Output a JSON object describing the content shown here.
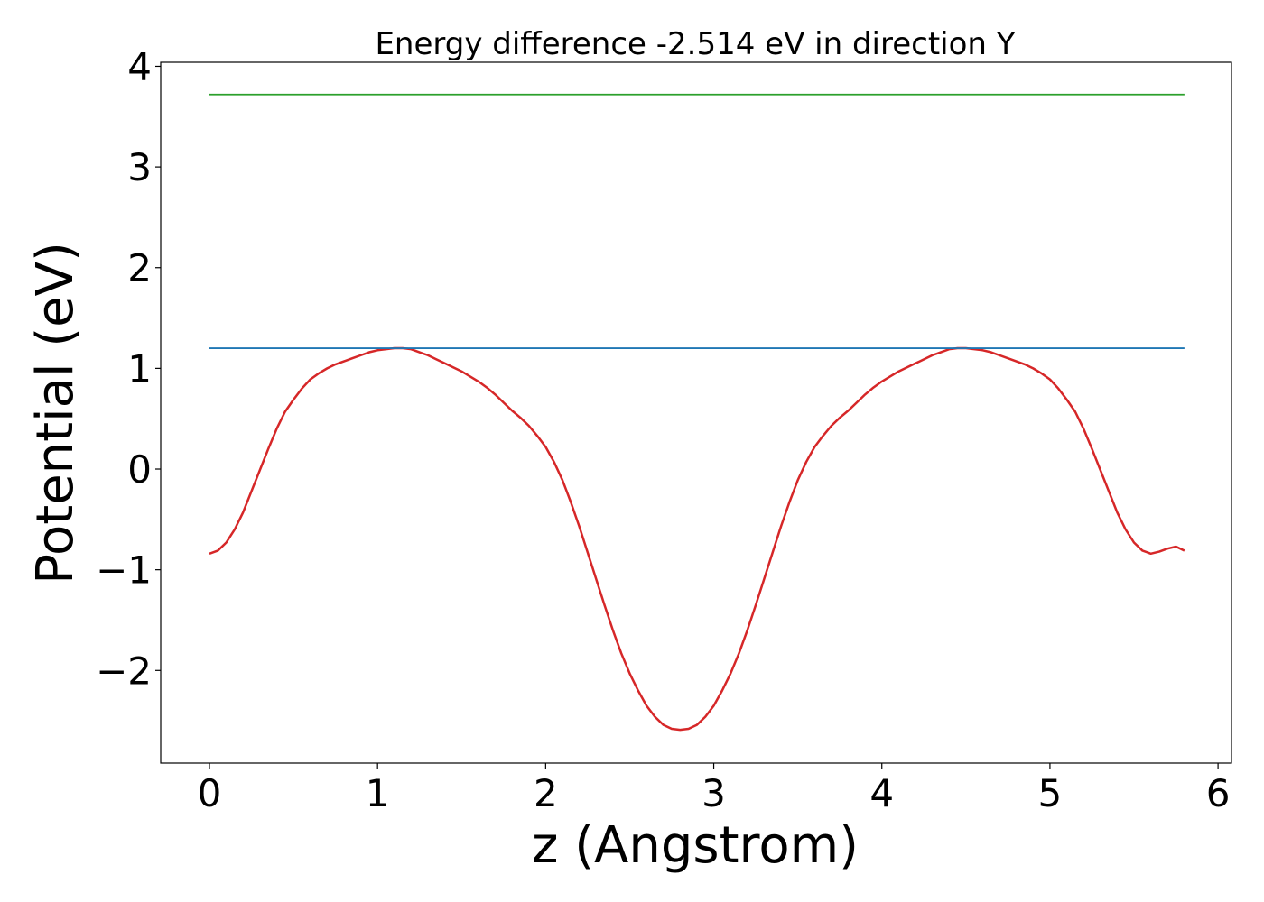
{
  "chart_data": {
    "type": "line",
    "title": "Energy difference -2.514 eV in direction Y",
    "xlabel": "z (Angstrom)",
    "ylabel": "Potential (eV)",
    "xlim": [
      -0.29,
      6.08
    ],
    "ylim": [
      -2.92,
      4.04
    ],
    "xticks": [
      0,
      1,
      2,
      3,
      4,
      5,
      6
    ],
    "xtick_labels": [
      "0",
      "1",
      "2",
      "3",
      "4",
      "5",
      "6"
    ],
    "yticks": [
      -2,
      -1,
      0,
      1,
      2,
      3,
      4
    ],
    "ytick_labels": [
      "−2",
      "−1",
      "0",
      "1",
      "2",
      "3",
      "4"
    ],
    "grid": false,
    "series": [
      {
        "color": "#d62728",
        "x": [
          0.0,
          0.05,
          0.1,
          0.15,
          0.2,
          0.25,
          0.3,
          0.35,
          0.4,
          0.45,
          0.5,
          0.55,
          0.6,
          0.65,
          0.7,
          0.75,
          0.8,
          0.85,
          0.9,
          0.95,
          1.0,
          1.05,
          1.1,
          1.15,
          1.2,
          1.25,
          1.3,
          1.35,
          1.4,
          1.45,
          1.5,
          1.55,
          1.6,
          1.65,
          1.7,
          1.75,
          1.8,
          1.85,
          1.9,
          1.95,
          2.0,
          2.05,
          2.1,
          2.15,
          2.2,
          2.25,
          2.3,
          2.35,
          2.4,
          2.45,
          2.5,
          2.55,
          2.6,
          2.65,
          2.7,
          2.75,
          2.8,
          2.85,
          2.9,
          2.95,
          3.0,
          3.05,
          3.1,
          3.15,
          3.2,
          3.25,
          3.3,
          3.35,
          3.4,
          3.45,
          3.5,
          3.55,
          3.6,
          3.65,
          3.7,
          3.75,
          3.8,
          3.85,
          3.9,
          3.95,
          4.0,
          4.05,
          4.1,
          4.15,
          4.2,
          4.25,
          4.3,
          4.35,
          4.4,
          4.45,
          4.5,
          4.55,
          4.6,
          4.65,
          4.7,
          4.75,
          4.8,
          4.85,
          4.9,
          4.95,
          5.0,
          5.05,
          5.1,
          5.15,
          5.2,
          5.25,
          5.3,
          5.35,
          5.4,
          5.45,
          5.5,
          5.55,
          5.6,
          5.65,
          5.7,
          5.75,
          5.8
        ],
        "y": [
          -0.84,
          -0.81,
          -0.73,
          -0.6,
          -0.43,
          -0.22,
          -0.01,
          0.2,
          0.4,
          0.57,
          0.69,
          0.8,
          0.89,
          0.95,
          1.0,
          1.04,
          1.07,
          1.1,
          1.13,
          1.16,
          1.18,
          1.19,
          1.2,
          1.2,
          1.19,
          1.16,
          1.13,
          1.09,
          1.05,
          1.01,
          0.97,
          0.92,
          0.87,
          0.81,
          0.74,
          0.66,
          0.58,
          0.51,
          0.43,
          0.33,
          0.22,
          0.07,
          -0.11,
          -0.33,
          -0.57,
          -0.83,
          -1.09,
          -1.35,
          -1.6,
          -1.83,
          -2.03,
          -2.2,
          -2.35,
          -2.46,
          -2.54,
          -2.58,
          -2.59,
          -2.58,
          -2.54,
          -2.46,
          -2.35,
          -2.2,
          -2.03,
          -1.83,
          -1.6,
          -1.35,
          -1.09,
          -0.83,
          -0.57,
          -0.33,
          -0.11,
          0.07,
          0.22,
          0.33,
          0.43,
          0.51,
          0.58,
          0.66,
          0.74,
          0.81,
          0.87,
          0.92,
          0.97,
          1.01,
          1.05,
          1.09,
          1.13,
          1.16,
          1.19,
          1.2,
          1.2,
          1.19,
          1.18,
          1.16,
          1.13,
          1.1,
          1.07,
          1.04,
          1.0,
          0.95,
          0.89,
          0.8,
          0.69,
          0.57,
          0.4,
          0.2,
          -0.01,
          -0.22,
          -0.43,
          -0.6,
          -0.73,
          -0.81,
          -0.84,
          -0.82,
          -0.79,
          -0.77,
          -0.81
        ]
      },
      {
        "color": "#1f77b4",
        "x": [
          0.0,
          5.8
        ],
        "y": [
          1.2,
          1.2
        ]
      },
      {
        "color": "#2ca02c",
        "x": [
          0.0,
          5.8
        ],
        "y": [
          3.72,
          3.72
        ]
      }
    ]
  }
}
